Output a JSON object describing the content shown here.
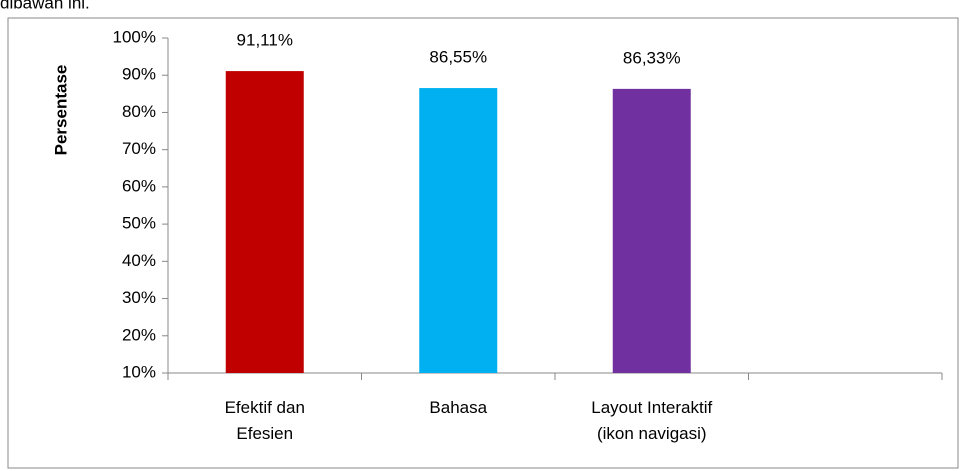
{
  "text_above": "dibawah ini.",
  "chart_data": {
    "type": "bar",
    "y_label": "Persentase",
    "categories": [
      "Efektif dan Efesien",
      "Bahasa",
      "Layout Interaktif (ikon navigasi)",
      null
    ],
    "values": [
      91.11,
      86.55,
      86.33,
      null
    ],
    "value_labels": [
      "91,11%",
      "86,55%",
      "86,33%",
      null
    ],
    "colors": [
      "#c00000",
      "#00b0f0",
      "#7030a0",
      null
    ],
    "ylim": [
      10,
      100
    ],
    "yticks": [
      {
        "value": 10,
        "label": "10%"
      },
      {
        "value": 20,
        "label": "20%"
      },
      {
        "value": 30,
        "label": "30%"
      },
      {
        "value": 40,
        "label": "40%"
      },
      {
        "value": 50,
        "label": "50%"
      },
      {
        "value": 60,
        "label": "60%"
      },
      {
        "value": 70,
        "label": "70%"
      },
      {
        "value": 80,
        "label": "80%"
      },
      {
        "value": 90,
        "label": "90%"
      },
      {
        "value": 100,
        "label": "100%"
      }
    ],
    "grid": false
  }
}
